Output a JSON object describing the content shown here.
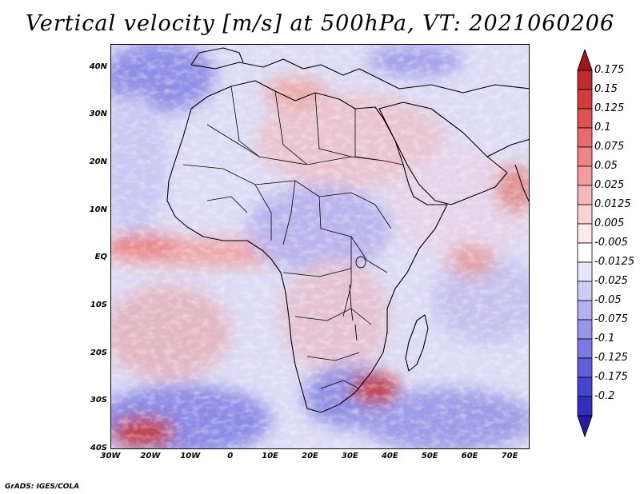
{
  "title": "Vertical velocity [m/s] at 500hPa, VT: 2021060206",
  "footer": "GrADS: IGES/COLA",
  "map": {
    "region": "Africa",
    "lon_range": [
      -30,
      75
    ],
    "lat_range": [
      -40,
      45
    ],
    "lat_ticks": [
      {
        "value": 40,
        "label": "40N"
      },
      {
        "value": 30,
        "label": "30N"
      },
      {
        "value": 20,
        "label": "20N"
      },
      {
        "value": 10,
        "label": "10N"
      },
      {
        "value": 0,
        "label": "EQ"
      },
      {
        "value": -10,
        "label": "10S"
      },
      {
        "value": -20,
        "label": "20S"
      },
      {
        "value": -30,
        "label": "30S"
      },
      {
        "value": -40,
        "label": "40S"
      }
    ],
    "lon_ticks": [
      {
        "value": -30,
        "label": "30W"
      },
      {
        "value": -20,
        "label": "20W"
      },
      {
        "value": -10,
        "label": "10W"
      },
      {
        "value": 0,
        "label": "0"
      },
      {
        "value": 10,
        "label": "10E"
      },
      {
        "value": 20,
        "label": "20E"
      },
      {
        "value": 30,
        "label": "30E"
      },
      {
        "value": 40,
        "label": "40E"
      },
      {
        "value": 50,
        "label": "50E"
      },
      {
        "value": 60,
        "label": "60E"
      },
      {
        "value": 70,
        "label": "70E"
      }
    ]
  },
  "legend": {
    "upper_color": "#a01818",
    "lower_color": "#2a1aa8",
    "levels": [
      {
        "label": "0.175",
        "color": "#c02a2a"
      },
      {
        "label": "0.15",
        "color": "#d43c3c"
      },
      {
        "label": "0.125",
        "color": "#e05252"
      },
      {
        "label": "0.1",
        "color": "#e86a6a"
      },
      {
        "label": "0.075",
        "color": "#ee8484"
      },
      {
        "label": "0.05",
        "color": "#f29e9e"
      },
      {
        "label": "0.025",
        "color": "#f6b8b8"
      },
      {
        "label": "0.0125",
        "color": "#fad2d2"
      },
      {
        "label": "0.005",
        "color": "#fdeaea"
      },
      {
        "label": "-0.005",
        "color": "#ffffff"
      },
      {
        "label": "-0.0125",
        "color": "#e6e6fa"
      },
      {
        "label": "-0.025",
        "color": "#cdcdf6"
      },
      {
        "label": "-0.05",
        "color": "#b2b2f0"
      },
      {
        "label": "-0.075",
        "color": "#9696ea"
      },
      {
        "label": "-0.1",
        "color": "#7a7ae2"
      },
      {
        "label": "-0.125",
        "color": "#5e5ed8"
      },
      {
        "label": "-0.175",
        "color": "#4444cc"
      },
      {
        "label": "-0.2",
        "color": "#3030bc"
      }
    ]
  }
}
